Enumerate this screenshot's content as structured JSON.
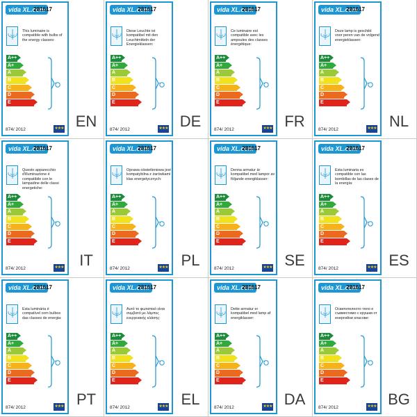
{
  "brand": "vida XL.com",
  "registration": "874/ 2012",
  "eu_flag": "★★★",
  "energy_classes": [
    {
      "label": "A++",
      "color": "#1a8c3a"
    },
    {
      "label": "A+",
      "color": "#33a93b"
    },
    {
      "label": "A",
      "color": "#9bc93a"
    },
    {
      "label": "B",
      "color": "#f0e21c"
    },
    {
      "label": "C",
      "color": "#f5b21a"
    },
    {
      "label": "D",
      "color": "#ea6a1f"
    },
    {
      "label": "E",
      "color": "#e2231a"
    }
  ],
  "labels": [
    {
      "code": "281617",
      "lang": "EN",
      "text": "This luminaire is compatible with bulbs of the energy classes:"
    },
    {
      "code": "281617",
      "lang": "DE",
      "text": "Diese Leuchte ist kompatibel mit den Leuchtmitteln der Energieklassen:"
    },
    {
      "code": "281617",
      "lang": "FR",
      "text": "Ce luminaire est compatible avec les ampoules des classes énergétique:"
    },
    {
      "code": "281617",
      "lang": "NL",
      "text": "Deze lamp is geschikt voor peren van de volgend energieklassen:"
    },
    {
      "code": "281617",
      "lang": "IT",
      "text": "Questo apparecchio d'illuminazione è compatibile con le lampadine delle classi energetiche:"
    },
    {
      "code": "281617",
      "lang": "PL",
      "text": "Oprawa oświetleniowa jest kompatybilna z żarówkami klas energetycznych:"
    },
    {
      "code": "281617",
      "lang": "SE",
      "text": "Denna armatur är kompatibel med lampor av följande energiklasser:"
    },
    {
      "code": "281617",
      "lang": "ES",
      "text": "Esta luminaria es compatible con las bombillas de las clases de la energía:"
    },
    {
      "code": "281617",
      "lang": "PT",
      "text": "Esta luminária é compatível com bulbos das classes de energia:"
    },
    {
      "code": "281617",
      "lang": "EL",
      "text": "Αυτό το φωτιστικό είναι συμβατό με λάμπες ενεργειακής κλάσης:"
    },
    {
      "code": "281617",
      "lang": "DA",
      "text": "Dette armatur er kompatibel med lamp af energiklasser:"
    },
    {
      "code": "281617",
      "lang": "BG",
      "text": "Осветителното тяло е съвместимо с крушки от енергийни класове:"
    }
  ]
}
